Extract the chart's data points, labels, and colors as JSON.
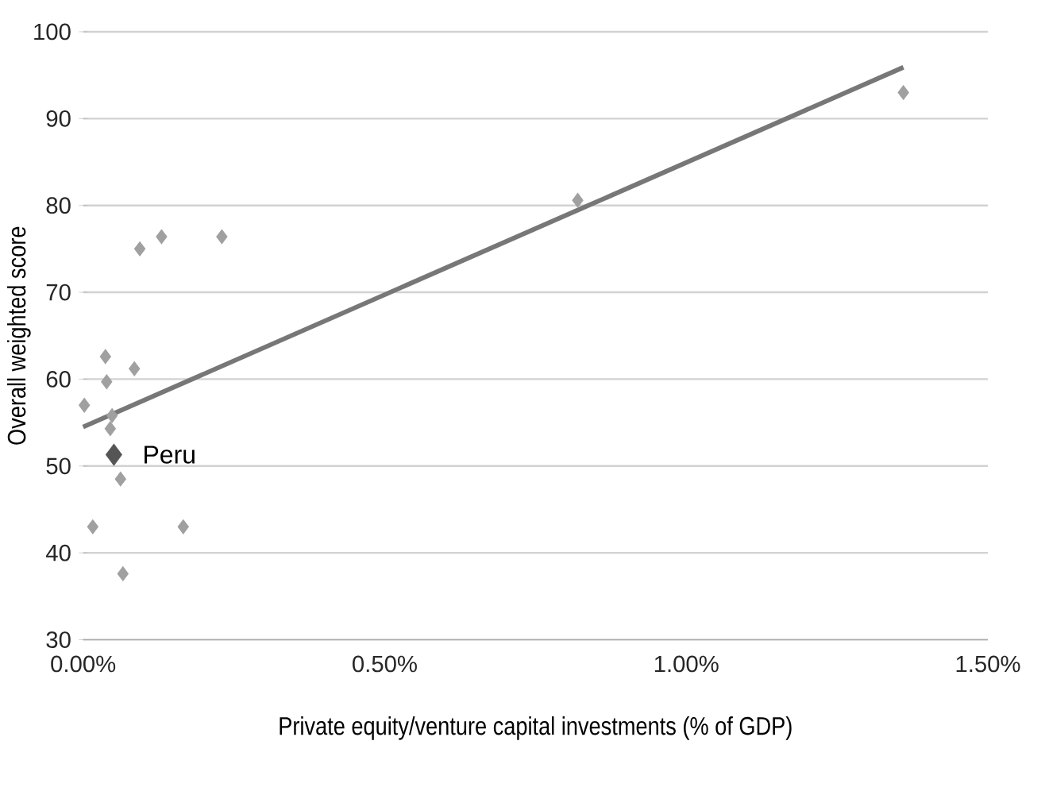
{
  "chart_data": {
    "type": "scatter",
    "xlabel": "Private equity/venture capital investments (% of GDP)",
    "ylabel": "Overall weighted score",
    "xlim": [
      0,
      1.5
    ],
    "xticks": [
      {
        "value": 0,
        "label": "0.00%"
      },
      {
        "value": 0.5,
        "label": "0.50%"
      },
      {
        "value": 1.0,
        "label": "1.00%"
      },
      {
        "value": 1.5,
        "label": "1.50%"
      }
    ],
    "ylim": [
      30,
      100
    ],
    "yticks": [
      30,
      40,
      50,
      60,
      70,
      80,
      90,
      100
    ],
    "grid": "y",
    "marker": "diamond",
    "series": [
      {
        "color": "#a0a0a0",
        "x": [
          0.002,
          0.037,
          0.039,
          0.085,
          0.048,
          0.045,
          0.062,
          0.016,
          0.166,
          0.066,
          0.094,
          0.13,
          0.23,
          0.82,
          1.36
        ],
        "values": [
          57.0,
          62.6,
          59.7,
          61.2,
          55.8,
          54.3,
          48.5,
          43.0,
          43.0,
          37.6,
          75.0,
          76.4,
          76.4,
          80.6,
          93.0
        ]
      },
      {
        "name": "Peru",
        "color": "#555555",
        "x": [
          0.051
        ],
        "values": [
          51.3
        ]
      },
      {
        "type": "line",
        "marker": "none",
        "color": "#777777",
        "x": [
          0,
          1.36
        ],
        "values": [
          54.5,
          95.9
        ]
      }
    ]
  }
}
